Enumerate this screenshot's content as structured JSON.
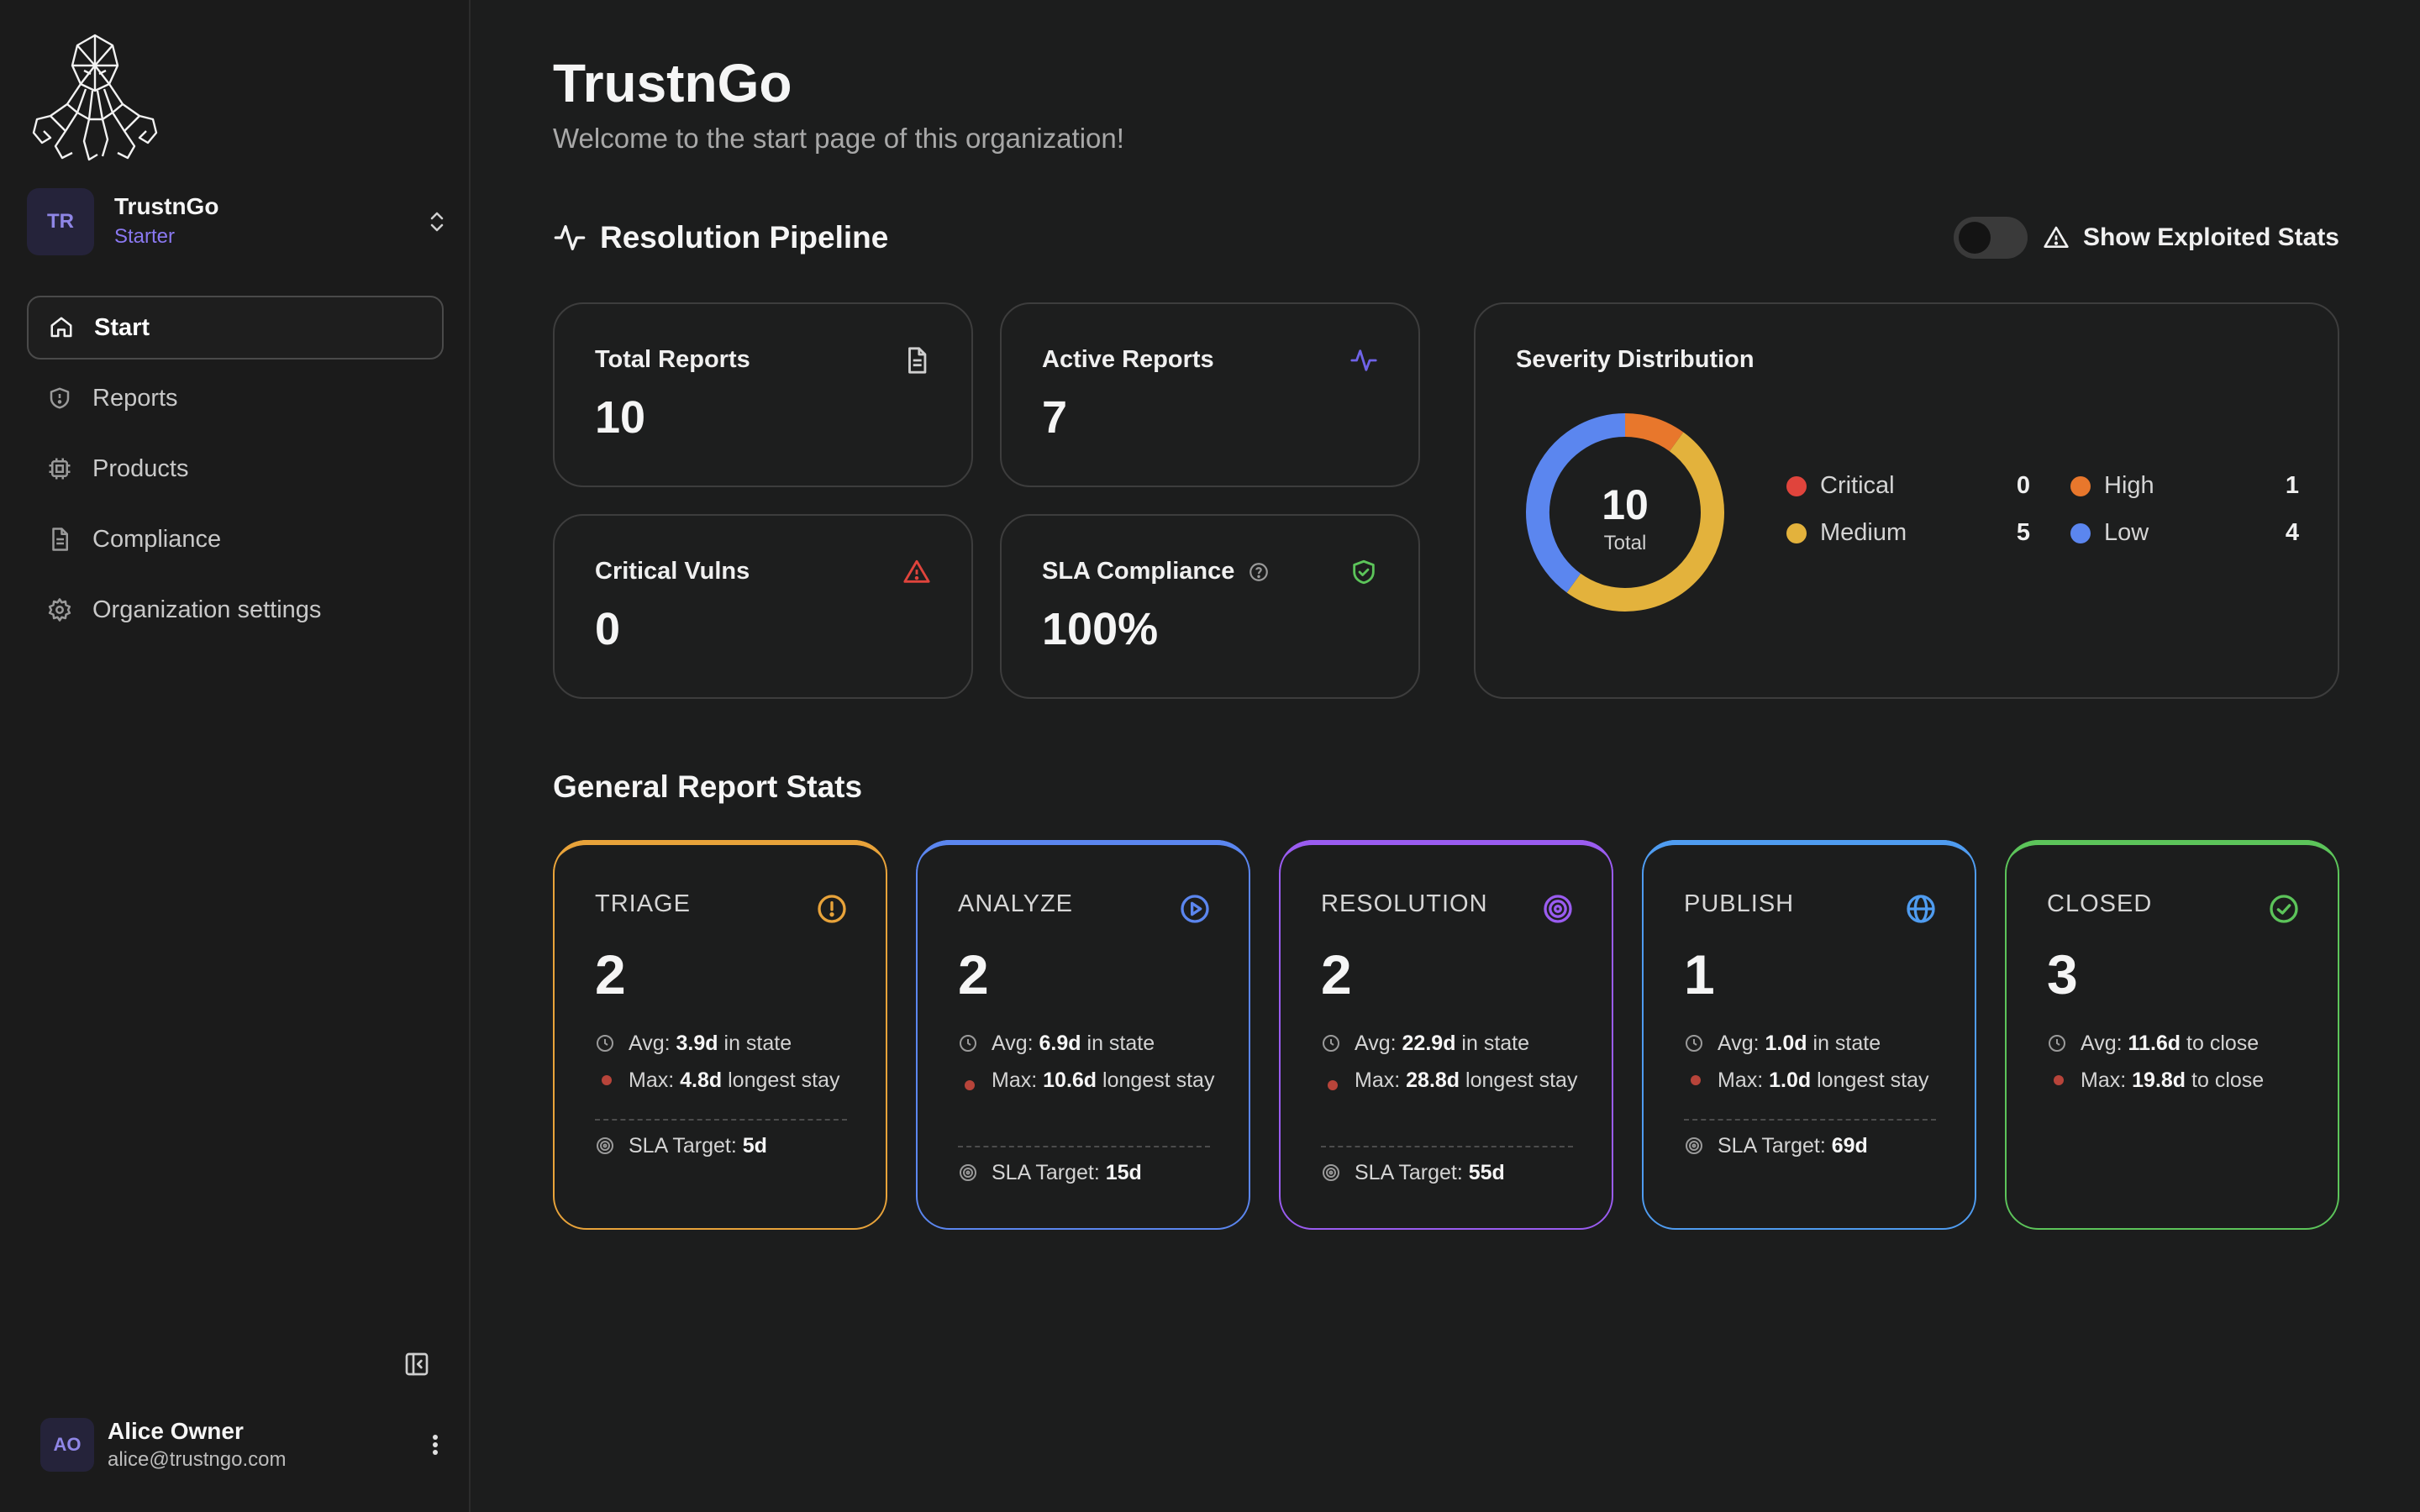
{
  "org": {
    "initials": "TR",
    "name": "TrustnGo",
    "plan": "Starter"
  },
  "nav": [
    {
      "label": "Start",
      "icon": "home-icon",
      "active": true
    },
    {
      "label": "Reports",
      "icon": "shield-icon"
    },
    {
      "label": "Products",
      "icon": "cpu-icon"
    },
    {
      "label": "Compliance",
      "icon": "document-icon"
    },
    {
      "label": "Organization settings",
      "icon": "gear-icon"
    }
  ],
  "user": {
    "initials": "AO",
    "name": "Alice Owner",
    "email": "alice@trustngo.com"
  },
  "page": {
    "title": "TrustnGo",
    "subtitle": "Welcome to the start page of this organization!"
  },
  "pipeline": {
    "title": "Resolution Pipeline",
    "toggle_label": "Show Exploited Stats",
    "toggle_on": false
  },
  "stats": {
    "total_reports": {
      "label": "Total Reports",
      "value": "10"
    },
    "active_reports": {
      "label": "Active Reports",
      "value": "7"
    },
    "critical_vulns": {
      "label": "Critical Vulns",
      "value": "0"
    },
    "sla_compliance": {
      "label": "SLA Compliance",
      "value": "100%"
    }
  },
  "severity": {
    "title": "Severity Distribution",
    "total": "10",
    "total_label": "Total",
    "items": [
      {
        "label": "Critical",
        "count": "0",
        "value": 0,
        "color": "#e0443c"
      },
      {
        "label": "High",
        "count": "1",
        "value": 1,
        "color": "#e8772c"
      },
      {
        "label": "Medium",
        "count": "5",
        "value": 5,
        "color": "#e3b23c"
      },
      {
        "label": "Low",
        "count": "4",
        "value": 4,
        "color": "#5b86ef"
      }
    ]
  },
  "general": {
    "title": "General Report Stats",
    "stages": [
      {
        "name": "TRIAGE",
        "count": "2",
        "color": "#e8a33a",
        "icon": "alert-circle-icon",
        "avg_prefix": "Avg:",
        "avg": "3.9d",
        "avg_suffix": "in state",
        "max_prefix": "Max:",
        "max": "4.8d",
        "max_suffix": "longest stay",
        "sla_prefix": "SLA Target:",
        "sla": "5d"
      },
      {
        "name": "ANALYZE",
        "count": "2",
        "color": "#5b86ef",
        "icon": "play-circle-icon",
        "avg_prefix": "Avg:",
        "avg": "6.9d",
        "avg_suffix": "in state",
        "max_prefix": "Max:",
        "max": "10.6d",
        "max_suffix": "longest stay",
        "sla_prefix": "SLA Target:",
        "sla": "15d"
      },
      {
        "name": "RESOLUTION",
        "count": "2",
        "color": "#9a5cf0",
        "icon": "target-icon",
        "avg_prefix": "Avg:",
        "avg": "22.9d",
        "avg_suffix": "in state",
        "max_prefix": "Max:",
        "max": "28.8d",
        "max_suffix": "longest stay",
        "sla_prefix": "SLA Target:",
        "sla": "55d"
      },
      {
        "name": "PUBLISH",
        "count": "1",
        "color": "#4f9cf0",
        "icon": "globe-icon",
        "avg_prefix": "Avg:",
        "avg": "1.0d",
        "avg_suffix": "in state",
        "max_prefix": "Max:",
        "max": "1.0d",
        "max_suffix": "longest stay",
        "sla_prefix": "SLA Target:",
        "sla": "69d"
      },
      {
        "name": "CLOSED",
        "count": "3",
        "color": "#5cc45a",
        "icon": "check-circle-icon",
        "avg_prefix": "Avg:",
        "avg": "11.6d",
        "avg_suffix": "to close",
        "max_prefix": "Max:",
        "max": "19.8d",
        "max_suffix": "to close"
      }
    ]
  }
}
